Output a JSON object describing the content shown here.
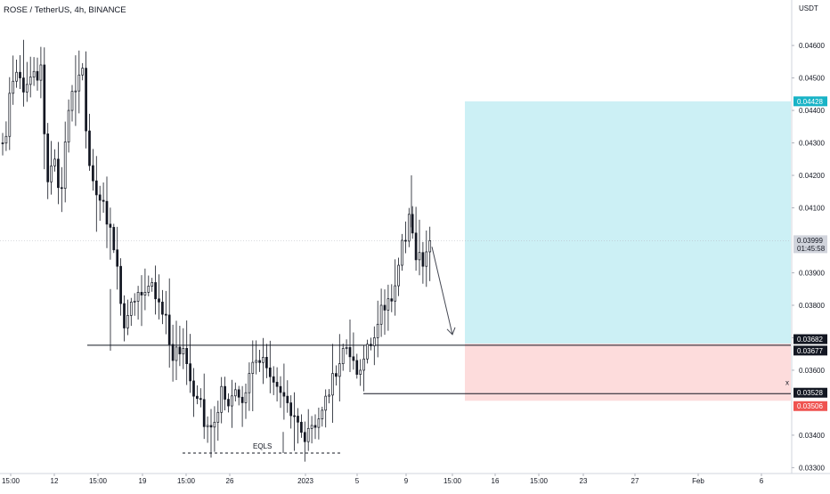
{
  "header": {
    "title": "ROSE / TetherUS, 4h, BINANCE"
  },
  "colors": {
    "background": "#ffffff",
    "candle": "#131722",
    "target_zone": "#ccf0f5",
    "stop_zone": "#fddcdc",
    "target_badge": "#18b3c6",
    "stop_badge": "#ef5350",
    "dark_badge": "#131722",
    "price_badge": "#d1d4dc",
    "axis_text": "#131722"
  },
  "chart_data": {
    "type": "candlestick",
    "title": "ROSE / TetherUS, 4h, BINANCE",
    "currency": "USDT",
    "ylim": [
      0.0326,
      0.0474
    ],
    "y_ticks": [
      "0.04600",
      "0.04500",
      "0.04400",
      "0.04300",
      "0.04200",
      "0.04100",
      "0.03900",
      "0.03800",
      "0.03700",
      "0.03600",
      "0.03400",
      "0.03300"
    ],
    "x_ticks": [
      "15:00",
      "12",
      "15:00",
      "19",
      "15:00",
      "26",
      "2023",
      "5",
      "9",
      "15:00",
      "16",
      "15:00",
      "23",
      "27",
      "Feb",
      "6"
    ],
    "price_path": [
      [
        0.043,
        0.0432
      ],
      [
        0.0452,
        0.0449
      ],
      [
        0.0454,
        0.045
      ],
      [
        0.0447,
        0.0448
      ],
      [
        0.0453,
        0.0452
      ],
      [
        0.045,
        0.0454
      ],
      [
        0.042,
        0.0418
      ],
      [
        0.0428,
        0.0425
      ],
      [
        0.0414,
        0.0416
      ],
      [
        0.0442,
        0.044
      ],
      [
        0.0448,
        0.0446
      ],
      [
        0.0451,
        0.0453
      ],
      [
        0.0421,
        0.0423
      ],
      [
        0.0416,
        0.0414
      ],
      [
        0.041,
        0.0412
      ],
      [
        0.0403,
        0.0404
      ],
      [
        0.0395,
        0.0392
      ],
      [
        0.0375,
        0.0373
      ],
      [
        0.0383,
        0.0381
      ],
      [
        0.0386,
        0.0384
      ],
      [
        0.0383,
        0.0384
      ],
      [
        0.0389,
        0.0387
      ],
      [
        0.0383,
        0.0381
      ],
      [
        0.0375,
        0.0377
      ],
      [
        0.0361,
        0.0363
      ],
      [
        0.0366,
        0.0365
      ],
      [
        0.0363,
        0.0362
      ],
      [
        0.0353,
        0.0352
      ],
      [
        0.0349,
        0.0351
      ],
      [
        0.0341,
        0.0343
      ],
      [
        0.0345,
        0.0344
      ],
      [
        0.0353,
        0.0355
      ],
      [
        0.0348,
        0.0349
      ],
      [
        0.0352,
        0.0354
      ],
      [
        0.0351,
        0.035
      ],
      [
        0.0358,
        0.0359
      ],
      [
        0.0361,
        0.0363
      ],
      [
        0.0365,
        0.0364
      ],
      [
        0.036,
        0.0358
      ],
      [
        0.0354,
        0.0355
      ],
      [
        0.0351,
        0.0352
      ],
      [
        0.0348,
        0.0346
      ],
      [
        0.0343,
        0.0344
      ],
      [
        0.034,
        0.0338
      ],
      [
        0.0342,
        0.0343
      ],
      [
        0.0344,
        0.0345
      ],
      [
        0.035,
        0.0352
      ],
      [
        0.0357,
        0.0359
      ],
      [
        0.0361,
        0.0362
      ],
      [
        0.0366,
        0.0367
      ],
      [
        0.0364,
        0.0363
      ],
      [
        0.0358,
        0.036
      ],
      [
        0.0366,
        0.0368
      ],
      [
        0.0369,
        0.037
      ],
      [
        0.0378,
        0.038
      ],
      [
        0.038,
        0.0382
      ],
      [
        0.0385,
        0.0386
      ],
      [
        0.0395,
        0.04
      ],
      [
        0.0405,
        0.0408
      ],
      [
        0.0397,
        0.0394
      ],
      [
        0.0393,
        0.0392
      ],
      [
        0.0398,
        0.03999
      ]
    ],
    "high_price": 0.042,
    "low_price": 0.03345,
    "levels": [
      {
        "value": 0.03677,
        "style": "solid"
      },
      {
        "value": 0.03528,
        "style": "solid"
      },
      {
        "value": 0.03345,
        "style": "dashed",
        "label": "EQLS"
      }
    ],
    "position": {
      "entry": 0.03682,
      "target": 0.04428,
      "stop": 0.03506
    },
    "price_labels": [
      {
        "value": "0.04428",
        "kind": "target"
      },
      {
        "value": "0.03999",
        "kind": "last",
        "sub": "01:45:58"
      },
      {
        "value": "0.03682",
        "kind": "dark"
      },
      {
        "value": "0.03677",
        "kind": "dark"
      },
      {
        "value": "0.03528",
        "kind": "dark"
      },
      {
        "value": "0.03506",
        "kind": "stop"
      }
    ],
    "annotations": [
      "EQLS"
    ],
    "grid": false,
    "scale_marker": "x"
  }
}
